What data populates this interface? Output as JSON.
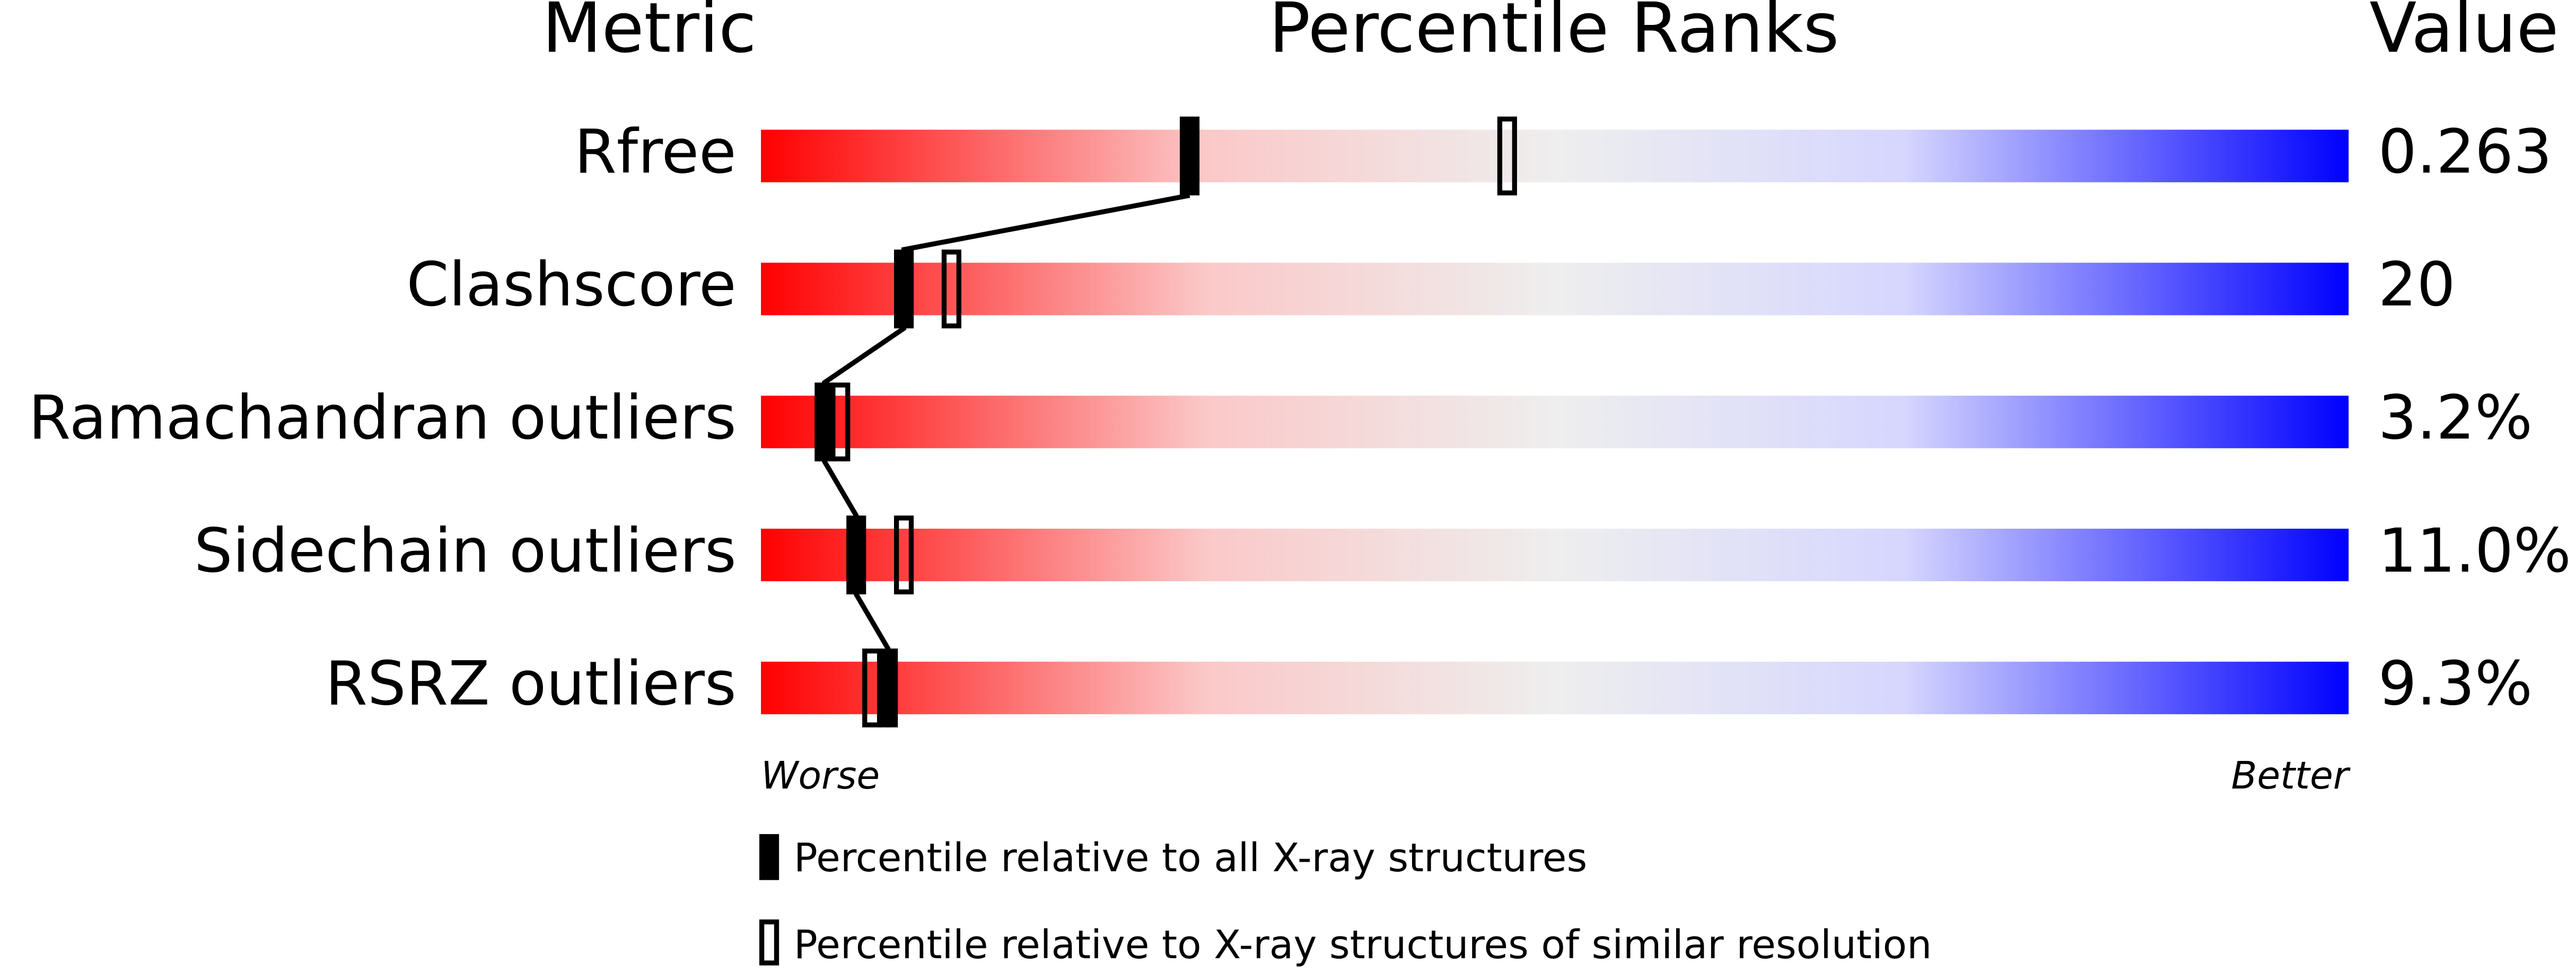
{
  "chart_data": {
    "type": "percentile-slider",
    "headers": {
      "metric": "Metric",
      "ranks": "Percentile Ranks",
      "value": "Value"
    },
    "xlim": [
      0,
      100
    ],
    "rows": [
      {
        "name": "Rfree",
        "value": "0.263",
        "absolute": 27,
        "relative": 47
      },
      {
        "name": "Clashscore",
        "value": "20",
        "absolute": 9,
        "relative": 12
      },
      {
        "name": "Ramachandran outliers",
        "value": "3.2%",
        "absolute": 4,
        "relative": 5
      },
      {
        "name": "Sidechain outliers",
        "value": "11.0%",
        "absolute": 6,
        "relative": 9
      },
      {
        "name": "RSRZ outliers",
        "value": "9.3%",
        "absolute": 8,
        "relative": 7
      }
    ],
    "worse": "Worse",
    "better": "Better",
    "legend": {
      "absolute": "Percentile relative to all X-ray structures",
      "relative": "Percentile relative to X-ray structures of similar resolution"
    }
  }
}
